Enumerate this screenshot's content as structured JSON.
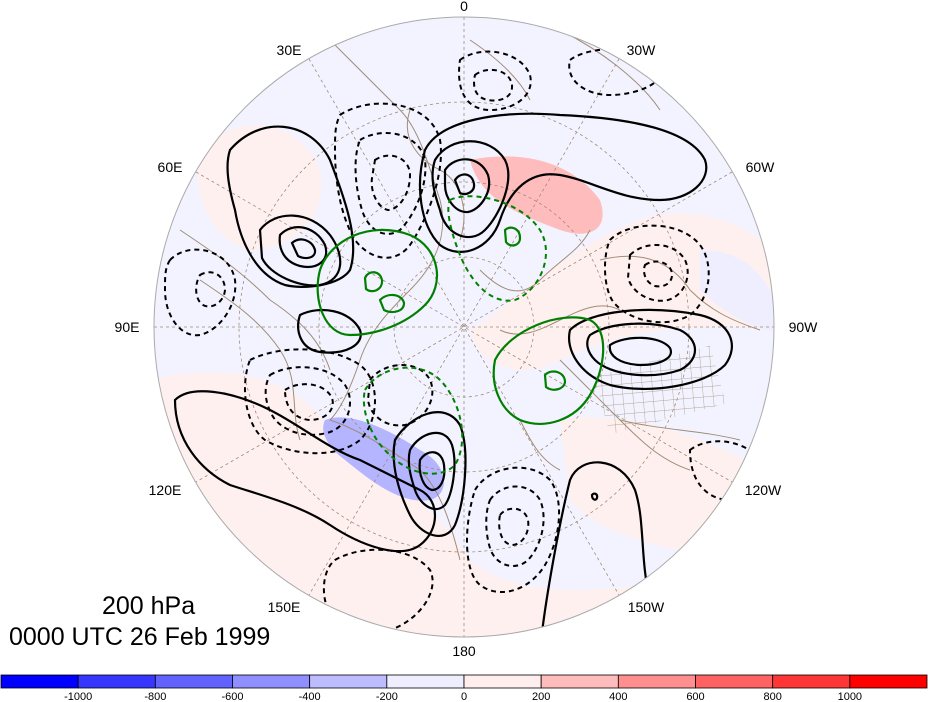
{
  "title": {
    "level": "200 hPa",
    "datetime": "0000 UTC 26 Feb 1999"
  },
  "longitude_labels": {
    "lon_0": "0",
    "lon_30w": "30W",
    "lon_60w": "60W",
    "lon_90w": "90W",
    "lon_120w": "120W",
    "lon_150w": "150W",
    "lon_180": "180",
    "lon_150e": "150E",
    "lon_120e": "120E",
    "lon_90e": "90E",
    "lon_60e": "60E",
    "lon_30e": "30E"
  },
  "colorbar": {
    "colors": [
      "#0000ff",
      "#3636ff",
      "#6262ff",
      "#8f8fff",
      "#bcbcff",
      "#eeeeff",
      "#ffeeee",
      "#ffbcbc",
      "#ff8f8f",
      "#ff6262",
      "#ff3636",
      "#ff0000"
    ],
    "tick_labels": [
      "-1000",
      "-800",
      "-600",
      "-400",
      "-200",
      "0",
      "200",
      "400",
      "600",
      "800",
      "1000"
    ]
  },
  "style": {
    "positive_contour": "#000000",
    "negative_contour": "#000000",
    "green_contour": "#008000",
    "coast": "#a08c78",
    "grid": "#a08c78"
  }
}
